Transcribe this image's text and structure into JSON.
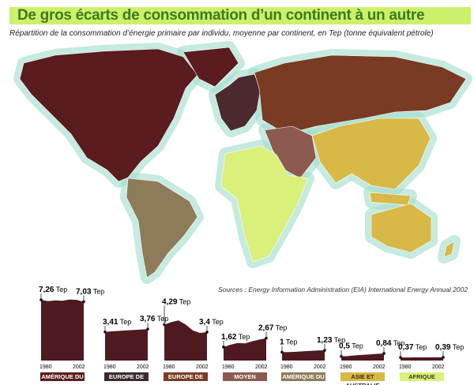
{
  "title": "De gros écarts de consommation d’un continent à un autre",
  "subtitle": "Répartition de la consommation d’énergie primaire par individu, moyenne par continent, en Tep (tonne équivalent pétrole)",
  "source": "Sources : Energy Information Administration (EIA) International Energy Annual 2002",
  "colors": {
    "glow": "#9fdccb",
    "na": "#5a1c1e",
    "we": "#4a2a2c",
    "ee": "#7a3b24",
    "me": "#8c5a4e",
    "sa": "#8e7b5a",
    "as": "#d8b846",
    "af": "#d9f07a",
    "chart": "#4e1a20"
  },
  "chart_data": {
    "type": "area",
    "x_start": "1980",
    "x_end": "2002",
    "unit": "Tep",
    "series": [
      {
        "name": "AMÉRIQUE DU NORD",
        "start_label": "7,26",
        "end_label": "7,03",
        "values": [
          7.26,
          7.1,
          7.2,
          7.15,
          7.3,
          7.25,
          7.03
        ],
        "label_bg": "#5a1c1e",
        "label_fg": "#ffffff"
      },
      {
        "name": "EUROPE DE L'OUEST",
        "start_label": "3,41",
        "end_label": "3,76",
        "values": [
          3.41,
          3.5,
          3.55,
          3.6,
          3.65,
          3.7,
          3.76
        ],
        "label_bg": "#3a2a2c",
        "label_fg": "#ffffff"
      },
      {
        "name": "EUROPE DE L'EST",
        "start_label": "4,29",
        "end_label": "3,4",
        "values": [
          4.29,
          4.6,
          4.8,
          4.3,
          3.6,
          3.3,
          3.4
        ],
        "label_bg": "#7a3b24",
        "label_fg": "#ffffff"
      },
      {
        "name": "MOYEN ORIENT",
        "start_label": "1,62",
        "end_label": "2,67",
        "values": [
          1.62,
          1.9,
          2.1,
          2.05,
          2.3,
          2.5,
          2.67
        ],
        "label_bg": "#8c5a4e",
        "label_fg": "#ffffff"
      },
      {
        "name": "AMÉRIQUE DU SUD",
        "start_label": "1",
        "end_label": "1,23",
        "values": [
          1.0,
          1.02,
          1.05,
          1.1,
          1.15,
          1.2,
          1.23
        ],
        "label_bg": "#8e7b5a",
        "label_fg": "#ffffff"
      },
      {
        "name": "ASIE ET AUSTRALIE",
        "start_label": "0,5",
        "end_label": "0,84",
        "values": [
          0.5,
          0.55,
          0.62,
          0.68,
          0.74,
          0.8,
          0.84
        ],
        "label_bg": "#d8b846",
        "label_fg": "#3a2a10"
      },
      {
        "name": "AFRIQUE",
        "start_label": "0,37",
        "end_label": "0,39",
        "values": [
          0.37,
          0.37,
          0.38,
          0.38,
          0.38,
          0.39,
          0.39
        ],
        "label_bg": "#d9f07a",
        "label_fg": "#3a3a10"
      }
    ]
  }
}
